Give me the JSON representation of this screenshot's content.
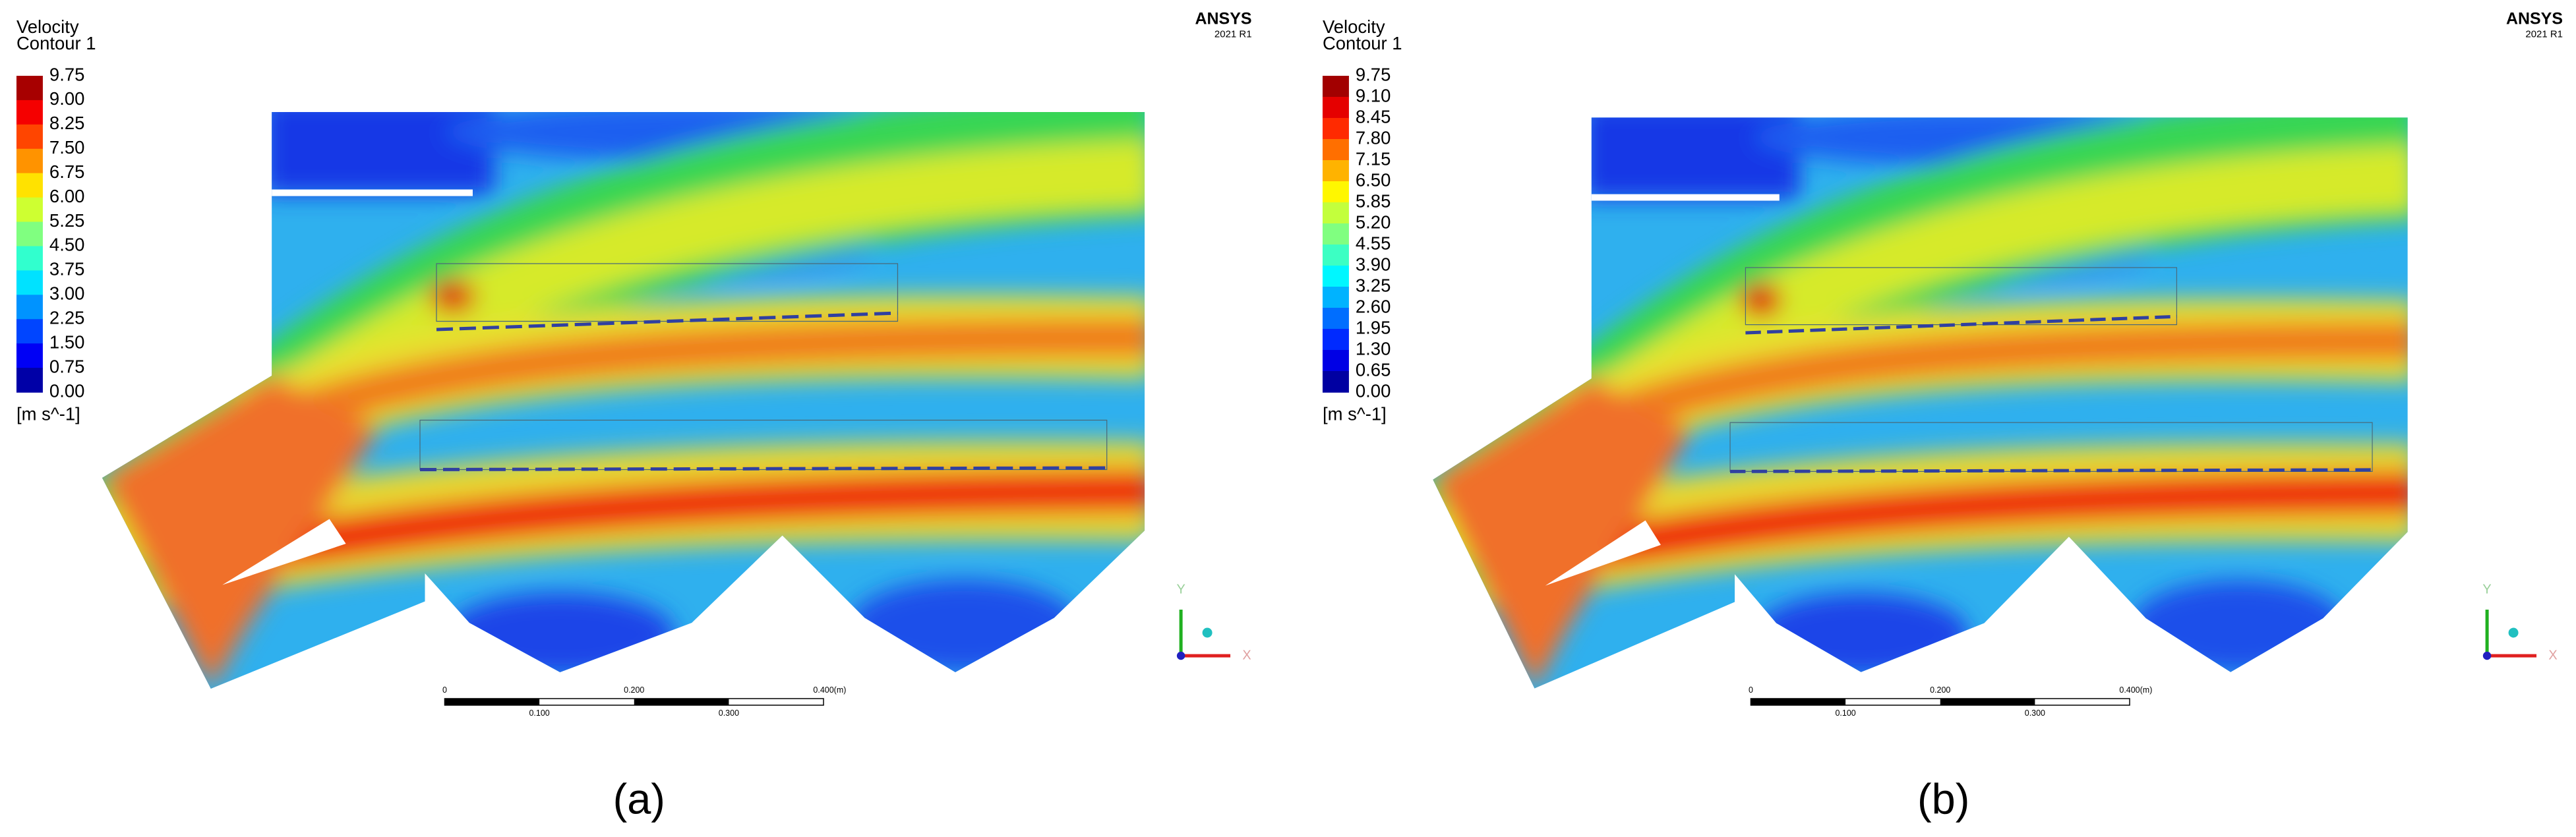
{
  "panels": [
    {
      "label": "(a)",
      "legend": {
        "title": [
          "Velocity",
          "Contour 1"
        ],
        "levels": [
          "9.75",
          "9.00",
          "8.25",
          "7.50",
          "6.75",
          "6.00",
          "5.25",
          "4.50",
          "3.75",
          "3.00",
          "2.25",
          "1.50",
          "0.75",
          "0.00"
        ],
        "unit": "[m s^-1]"
      },
      "logo": {
        "name": "ANSYS",
        "version": "2021 R1"
      },
      "scale_bar": {
        "top": [
          "0",
          "0.200",
          "0.400"
        ],
        "unit": "(m)",
        "bottom": [
          "0.100",
          "0.300"
        ]
      },
      "axes": {
        "y": "Y",
        "x": "X"
      }
    },
    {
      "label": "(b)",
      "legend": {
        "title": [
          "Velocity",
          "Contour 1"
        ],
        "levels": [
          "9.75",
          "9.10",
          "8.45",
          "7.80",
          "7.15",
          "6.50",
          "5.85",
          "5.20",
          "4.55",
          "3.90",
          "3.25",
          "2.60",
          "1.95",
          "1.30",
          "0.65",
          "0.00"
        ],
        "unit": "[m s^-1]"
      },
      "logo": {
        "name": "ANSYS",
        "version": "2021 R1"
      },
      "scale_bar": {
        "top": [
          "0",
          "0.200",
          "0.400"
        ],
        "unit": "(m)",
        "bottom": [
          "0.100",
          "0.300"
        ]
      },
      "axes": {
        "y": "Y",
        "x": "X"
      }
    }
  ]
}
